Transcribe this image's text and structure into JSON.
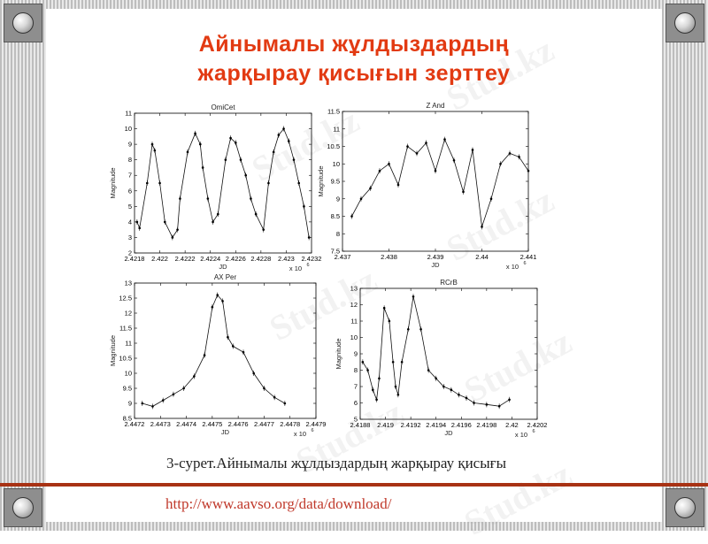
{
  "slide": {
    "title_line1": "Айнымалы жұлдыздардың",
    "title_line2": "жарқырау қисығын зерттеу",
    "caption": "3-сурет.Айнымалы жұлдыздардың жарқырау қисығы",
    "url": "http://www.aavso.org/data/download/",
    "watermark": "Stud.kz"
  },
  "chart_data": [
    {
      "type": "line",
      "title": "OmiCet",
      "xlabel": "JD",
      "ylabel": "Magnitude",
      "x_multiplier": "x 10",
      "x_exponent": "6",
      "xlim": [
        2.4218,
        2.4232
      ],
      "ylim": [
        2,
        11
      ],
      "xticks": [
        "2.4218",
        "2.422",
        "2.4222",
        "2.4224",
        "2.4226",
        "2.4228",
        "2.423",
        "2.4232"
      ],
      "yticks": [
        "2",
        "3",
        "4",
        "5",
        "6",
        "7",
        "8",
        "9",
        "10",
        "11"
      ],
      "x": [
        2.42182,
        2.42184,
        2.4219,
        2.42194,
        2.42196,
        2.422,
        2.42204,
        2.4221,
        2.42214,
        2.42216,
        2.42222,
        2.42228,
        2.42232,
        2.42234,
        2.42238,
        2.42242,
        2.42246,
        2.42252,
        2.42256,
        2.4226,
        2.42264,
        2.42268,
        2.42272,
        2.42276,
        2.42282,
        2.42286,
        2.4229,
        2.42294,
        2.42298,
        2.42302,
        2.42306,
        2.4231,
        2.42314,
        2.42318
      ],
      "y": [
        4.0,
        3.6,
        6.5,
        9.0,
        8.6,
        6.5,
        4.0,
        3.0,
        3.5,
        5.5,
        8.5,
        9.7,
        9.0,
        7.5,
        5.5,
        4.0,
        4.5,
        8.0,
        9.4,
        9.1,
        8.0,
        7.0,
        5.5,
        4.5,
        3.5,
        6.5,
        8.5,
        9.6,
        10.0,
        9.2,
        8.0,
        6.5,
        5.0,
        3.0
      ]
    },
    {
      "type": "line",
      "title": "Z And",
      "xlabel": "JD",
      "ylabel": "Magnitude",
      "x_multiplier": "x 10",
      "x_exponent": "6",
      "xlim": [
        2.437,
        2.441
      ],
      "ylim": [
        7.5,
        11.5
      ],
      "xticks": [
        "2.437",
        "2.438",
        "2.439",
        "2.44",
        "2.441"
      ],
      "yticks": [
        "7.5",
        "8",
        "8.5",
        "9",
        "9.5",
        "10",
        "10.5",
        "11",
        "11.5"
      ],
      "x": [
        2.4372,
        2.4374,
        2.4376,
        2.4378,
        2.438,
        2.4382,
        2.4384,
        2.4386,
        2.4388,
        2.439,
        2.4392,
        2.4394,
        2.4396,
        2.4398,
        2.44,
        2.4402,
        2.4404,
        2.4406,
        2.4408,
        2.441
      ],
      "y": [
        8.5,
        9.0,
        9.3,
        9.8,
        10.0,
        9.4,
        10.5,
        10.3,
        10.6,
        9.8,
        10.7,
        10.1,
        9.2,
        10.4,
        8.2,
        9.0,
        10.0,
        10.3,
        10.2,
        9.8
      ]
    },
    {
      "type": "line",
      "title": "AX Per",
      "xlabel": "JD",
      "ylabel": "Magnitude",
      "x_multiplier": "x 10",
      "x_exponent": "6",
      "xlim": [
        2.4472,
        2.4479
      ],
      "ylim": [
        8.5,
        13
      ],
      "xticks": [
        "2.4472",
        "2.4473",
        "2.4474",
        "2.4475",
        "2.4476",
        "2.4477",
        "2.4478",
        "2.4479"
      ],
      "yticks": [
        "8.5",
        "9",
        "9.5",
        "10",
        "10.5",
        "11",
        "11.5",
        "12",
        "12.5",
        "13"
      ],
      "x": [
        2.44723,
        2.44727,
        2.44731,
        2.44735,
        2.44739,
        2.44743,
        2.44747,
        2.4475,
        2.44752,
        2.44754,
        2.44756,
        2.44758,
        2.44762,
        2.44766,
        2.4477,
        2.44774,
        2.44778
      ],
      "y": [
        9.0,
        8.9,
        9.1,
        9.3,
        9.5,
        9.9,
        10.6,
        12.2,
        12.6,
        12.4,
        11.2,
        10.9,
        10.7,
        10.0,
        9.5,
        9.2,
        9.0
      ]
    },
    {
      "type": "line",
      "title": "RCrB",
      "xlabel": "JD",
      "ylabel": "Magnitude",
      "x_multiplier": "x 10",
      "x_exponent": "6",
      "xlim": [
        2.4188,
        2.4202
      ],
      "ylim": [
        5,
        13
      ],
      "xticks": [
        "2.4188",
        "2.419",
        "2.4192",
        "2.4194",
        "2.4196",
        "2.4198",
        "2.42",
        "2.4202"
      ],
      "yticks": [
        "5",
        "6",
        "7",
        "8",
        "9",
        "10",
        "11",
        "12",
        "13"
      ],
      "x": [
        2.41882,
        2.41886,
        2.4189,
        2.41893,
        2.41895,
        2.41899,
        2.41903,
        2.41906,
        2.41908,
        2.4191,
        2.41913,
        2.41918,
        2.41922,
        2.41928,
        2.41934,
        2.4194,
        2.41946,
        2.41952,
        2.41958,
        2.41964,
        2.4197,
        2.4198,
        2.4199,
        2.41998
      ],
      "y": [
        8.5,
        8.0,
        6.8,
        6.2,
        7.5,
        11.8,
        11.0,
        8.5,
        7.0,
        6.5,
        8.5,
        10.5,
        12.5,
        10.5,
        8.0,
        7.5,
        7.0,
        6.8,
        6.5,
        6.3,
        6.0,
        5.9,
        5.8,
        6.2
      ]
    }
  ]
}
